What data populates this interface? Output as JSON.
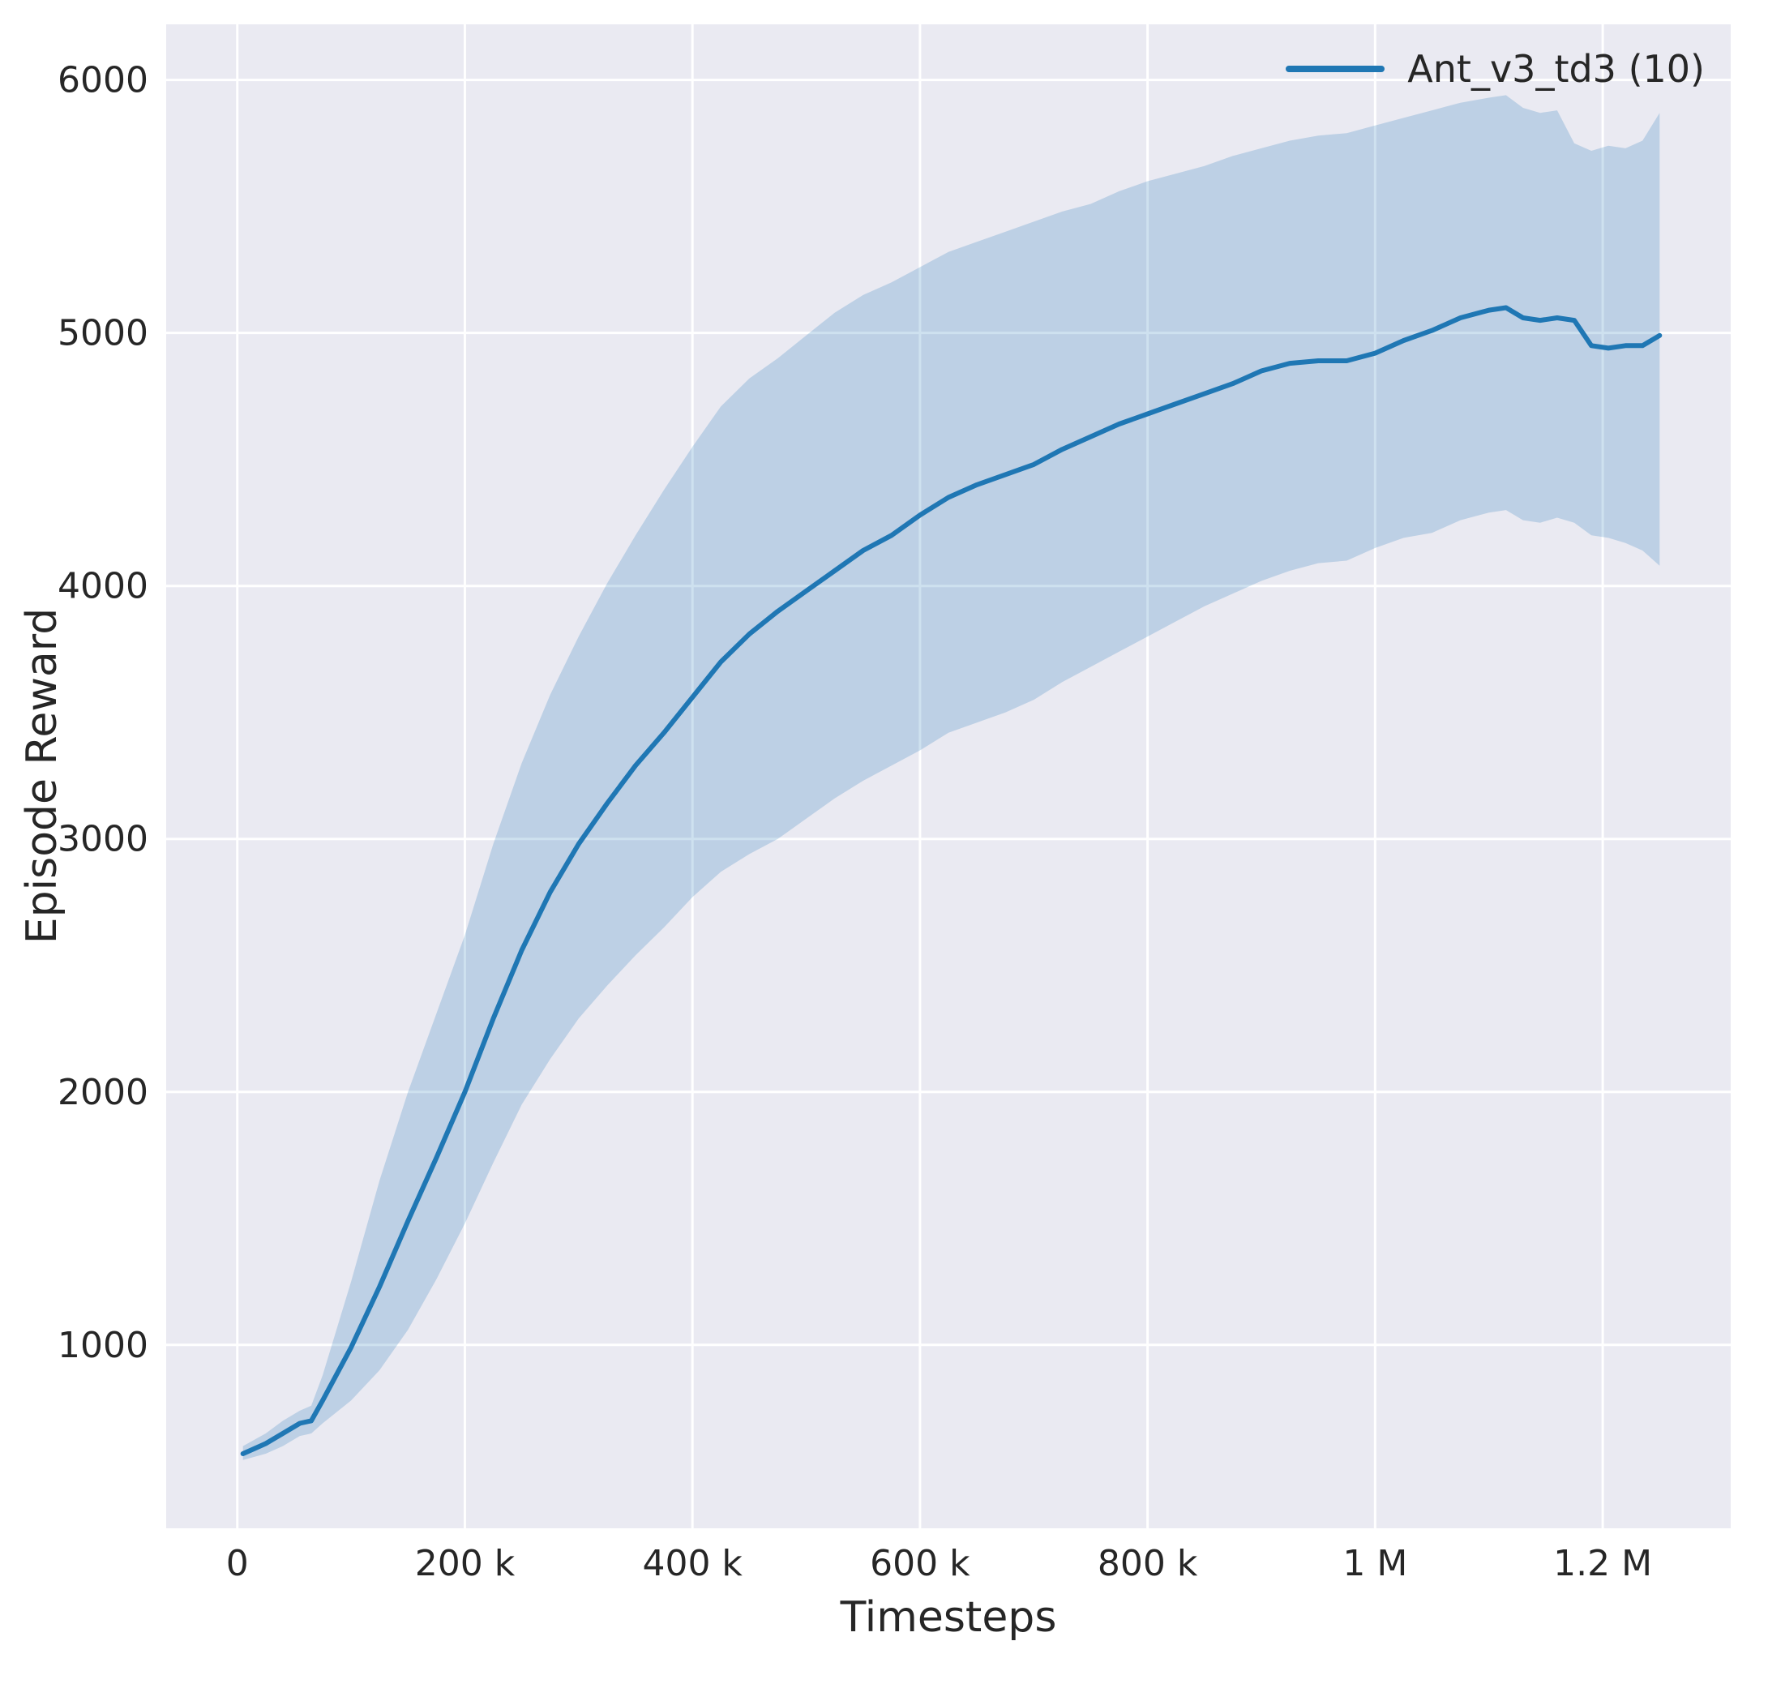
{
  "figure": {
    "background": "#ffffff",
    "axes_background": "#eaeaf2",
    "grid_color": "#ffffff",
    "text_color": "#262626"
  },
  "chart_data": {
    "type": "line",
    "title": "",
    "xlabel": "Timesteps",
    "ylabel": "Episode Reward",
    "grid": true,
    "legend_position": "upper right",
    "legend": [
      {
        "label": "Ant_v3_td3 (10)",
        "color": "#1f77b4"
      }
    ],
    "xlim": [
      -62500,
      1312500
    ],
    "ylim": [
      275,
      6220
    ],
    "xticks": {
      "values": [
        0,
        200000,
        400000,
        600000,
        800000,
        1000000,
        1200000
      ],
      "labels": [
        "0",
        "200 k",
        "400 k",
        "600 k",
        "800 k",
        "1 M",
        "1.2 M"
      ]
    },
    "yticks": {
      "values": [
        1000,
        2000,
        3000,
        4000,
        5000,
        6000
      ],
      "labels": [
        "1000",
        "2000",
        "3000",
        "4000",
        "5000",
        "6000"
      ]
    },
    "series": [
      {
        "name": "Ant_v3_td3 (10)",
        "color": "#1f77b4",
        "band_opacity": 0.22,
        "x": [
          5000,
          25000,
          40000,
          55000,
          65000,
          75000,
          100000,
          125000,
          150000,
          175000,
          200000,
          225000,
          250000,
          275000,
          300000,
          325000,
          350000,
          375000,
          400000,
          425000,
          450000,
          475000,
          500000,
          525000,
          550000,
          575000,
          600000,
          625000,
          650000,
          675000,
          700000,
          725000,
          750000,
          775000,
          800000,
          825000,
          850000,
          875000,
          900000,
          925000,
          950000,
          975000,
          1000000,
          1025000,
          1050000,
          1075000,
          1100000,
          1115000,
          1130000,
          1145000,
          1160000,
          1175000,
          1190000,
          1205000,
          1220000,
          1235000,
          1250000
        ],
        "mean": [
          570,
          610,
          650,
          690,
          700,
          780,
          990,
          1230,
          1490,
          1740,
          2000,
          2290,
          2560,
          2790,
          2980,
          3140,
          3290,
          3420,
          3560,
          3700,
          3810,
          3900,
          3980,
          4060,
          4140,
          4200,
          4280,
          4350,
          4400,
          4440,
          4480,
          4540,
          4590,
          4640,
          4680,
          4720,
          4760,
          4800,
          4850,
          4880,
          4890,
          4890,
          4920,
          4970,
          5010,
          5060,
          5090,
          5100,
          5060,
          5050,
          5060,
          5050,
          4950,
          4940,
          4950,
          4950,
          4990
        ],
        "lower": [
          545,
          570,
          600,
          640,
          650,
          690,
          780,
          900,
          1060,
          1260,
          1480,
          1720,
          1950,
          2130,
          2290,
          2420,
          2540,
          2650,
          2770,
          2870,
          2940,
          3000,
          3080,
          3160,
          3230,
          3290,
          3350,
          3420,
          3460,
          3500,
          3550,
          3620,
          3680,
          3740,
          3800,
          3860,
          3920,
          3970,
          4020,
          4060,
          4090,
          4100,
          4150,
          4190,
          4210,
          4260,
          4290,
          4300,
          4260,
          4250,
          4270,
          4250,
          4200,
          4190,
          4170,
          4140,
          4080
        ],
        "upper": [
          600,
          650,
          700,
          740,
          760,
          880,
          1250,
          1650,
          2000,
          2310,
          2620,
          2980,
          3300,
          3570,
          3800,
          4010,
          4200,
          4380,
          4550,
          4710,
          4820,
          4900,
          4990,
          5080,
          5150,
          5200,
          5260,
          5320,
          5360,
          5400,
          5440,
          5480,
          5510,
          5560,
          5600,
          5630,
          5660,
          5700,
          5730,
          5760,
          5780,
          5790,
          5820,
          5850,
          5880,
          5910,
          5930,
          5940,
          5890,
          5870,
          5880,
          5750,
          5720,
          5740,
          5730,
          5760,
          5870
        ]
      }
    ]
  }
}
